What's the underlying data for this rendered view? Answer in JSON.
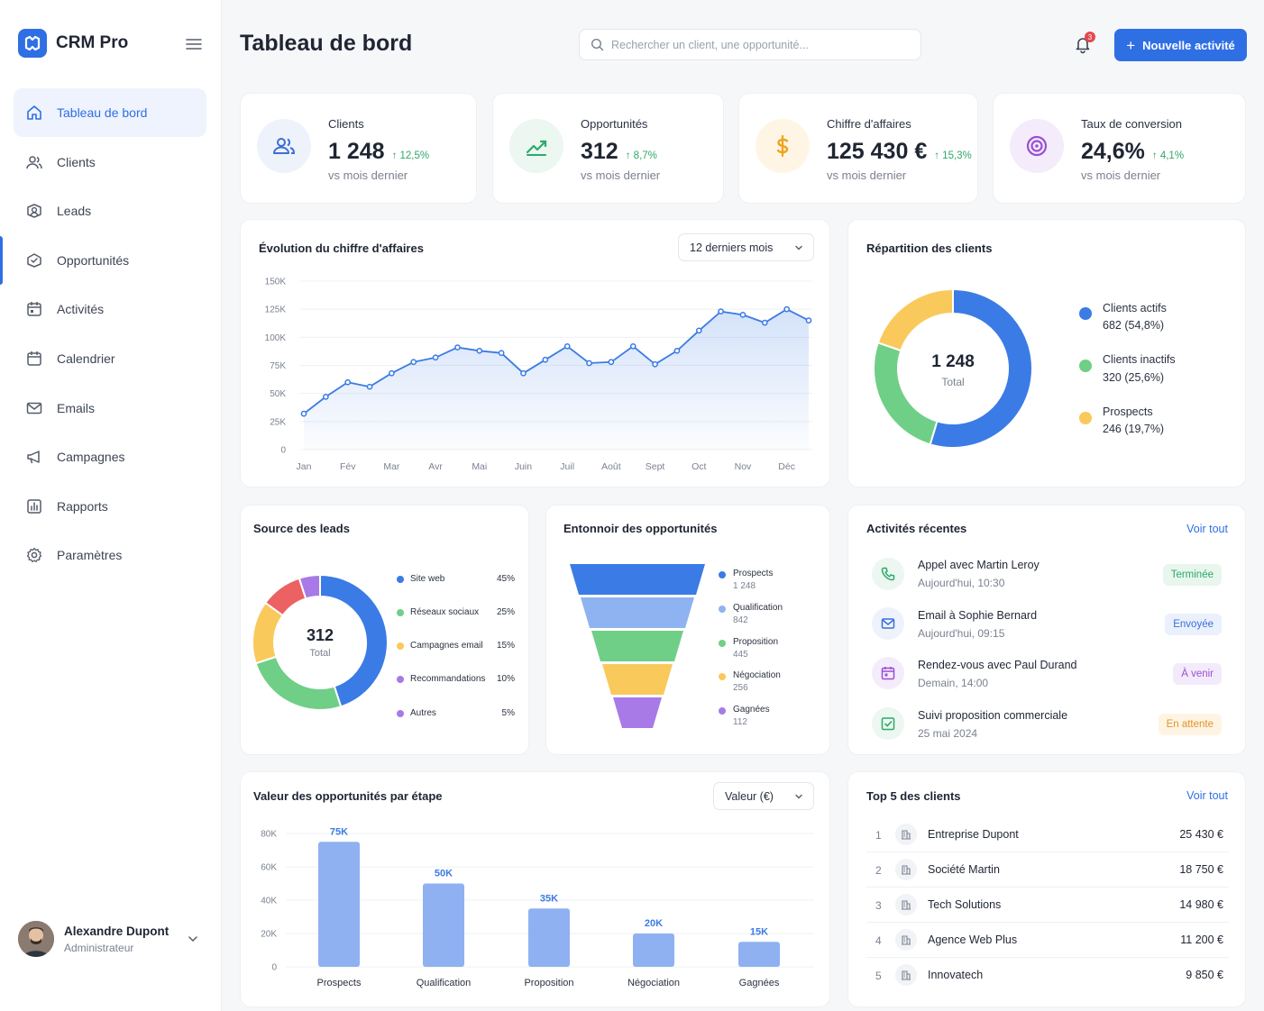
{
  "brand": {
    "name": "CRM Pro"
  },
  "sidebar": {
    "items": [
      {
        "label": "Tableau de bord",
        "icon": "home-icon",
        "active": true
      },
      {
        "label": "Clients",
        "icon": "users-icon"
      },
      {
        "label": "Leads",
        "icon": "leads-icon"
      },
      {
        "label": "Opportunités",
        "icon": "opportunities-icon"
      },
      {
        "label": "Activités",
        "icon": "activities-icon"
      },
      {
        "label": "Calendrier",
        "icon": "calendar-icon"
      },
      {
        "label": "Emails",
        "icon": "mail-icon"
      },
      {
        "label": "Campagnes",
        "icon": "megaphone-icon"
      },
      {
        "label": "Rapports",
        "icon": "report-icon"
      },
      {
        "label": "Paramètres",
        "icon": "gear-icon"
      }
    ]
  },
  "user": {
    "name": "Alexandre Dupont",
    "role": "Administrateur"
  },
  "header": {
    "title": "Tableau de bord",
    "search_placeholder": "Rechercher un client, une opportunité...",
    "notifications_count": "3",
    "new_activity_label": "Nouvelle activité"
  },
  "kpis": [
    {
      "label": "Clients",
      "value": "1 248",
      "delta": "12,5%",
      "sub": "vs mois dernier",
      "icon": "users-icon",
      "color": "#3b6fd6",
      "bg": "#eef2fb"
    },
    {
      "label": "Opportunités",
      "value": "312",
      "delta": "8,7%",
      "sub": "vs mois dernier",
      "icon": "trending-up-icon",
      "color": "#2fa86a",
      "bg": "#ebf7f0"
    },
    {
      "label": "Chiffre d'affaires",
      "value": "125 430 €",
      "delta": "15,3%",
      "sub": "vs mois dernier",
      "icon": "dollar-icon",
      "color": "#f0a31c",
      "bg": "#fff5e4"
    },
    {
      "label": "Taux de conversion",
      "value": "24,6%",
      "delta": "4,1%",
      "sub": "vs mois dernier",
      "icon": "target-icon",
      "color": "#9a4fd3",
      "bg": "#f4ecfb"
    }
  ],
  "revenue_chart": {
    "title": "Évolution du chiffre d'affaires",
    "period": "12 derniers mois"
  },
  "clients_split": {
    "title": "Répartition des clients",
    "total": "1 248",
    "total_label": "Total",
    "items": [
      {
        "label": "Clients actifs",
        "detail": "682 (54,8%)",
        "color": "#3b7be5"
      },
      {
        "label": "Clients inactifs",
        "detail": "320 (25,6%)",
        "color": "#6fcf86"
      },
      {
        "label": "Prospects",
        "detail": "246 (19,7%)",
        "color": "#f9c95c"
      }
    ]
  },
  "lead_sources": {
    "title": "Source des leads",
    "total": "312",
    "total_label": "Total",
    "items": [
      {
        "label": "Site web",
        "pct": "45%",
        "color": "#3b7be5"
      },
      {
        "label": "Réseaux sociaux",
        "pct": "25%",
        "color": "#6fcf86"
      },
      {
        "label": "Campagnes email",
        "pct": "15%",
        "color": "#f9c95c"
      },
      {
        "label": "Recommandations",
        "pct": "10%",
        "color": "#ec6161"
      },
      {
        "label": "Autres",
        "pct": "5%",
        "color": "#a77ae8"
      }
    ]
  },
  "funnel": {
    "title": "Entonnoir des opportunités",
    "stages": [
      {
        "label": "Prospects",
        "value": "1 248",
        "color": "#3b7be5"
      },
      {
        "label": "Qualification",
        "value": "842",
        "color": "#8fb3f0"
      },
      {
        "label": "Proposition",
        "value": "445",
        "color": "#6fcf86"
      },
      {
        "label": "Négociation",
        "value": "256",
        "color": "#f9c95c"
      },
      {
        "label": "Gagnées",
        "value": "112",
        "color": "#a77ae8"
      }
    ]
  },
  "activities": {
    "title": "Activités récentes",
    "see_all": "Voir tout",
    "items": [
      {
        "title": "Appel avec Martin Leroy",
        "time": "Aujourd'hui, 10:30",
        "status": "Terminée",
        "icon": "phone-icon",
        "fg": "#2fa86a",
        "bg": "#ebf7f0",
        "badge_fg": "#2fa86a",
        "badge_bg": "#e8f6ee"
      },
      {
        "title": "Email à Sophie Bernard",
        "time": "Aujourd'hui, 09:15",
        "status": "Envoyée",
        "icon": "mail-icon",
        "fg": "#3b6fd6",
        "bg": "#eef2fb",
        "badge_fg": "#3b6fd6",
        "badge_bg": "#eaf0fc"
      },
      {
        "title": "Rendez-vous avec Paul Durand",
        "time": "Demain, 14:00",
        "status": "À venir",
        "icon": "calendar-icon",
        "fg": "#9a4fd3",
        "bg": "#f4ecfb",
        "badge_fg": "#9a4fd3",
        "badge_bg": "#f3ebfb"
      },
      {
        "title": "Suivi proposition commerciale",
        "time": "25 mai 2024",
        "status": "En attente",
        "icon": "check-square-icon",
        "fg": "#2fa86a",
        "bg": "#ebf7f0",
        "badge_fg": "#e0952a",
        "badge_bg": "#fff4e3"
      }
    ]
  },
  "stage_values": {
    "title": "Valeur des opportunités par étape",
    "select": "Valeur (€)"
  },
  "top_clients": {
    "title": "Top 5 des clients",
    "see_all": "Voir tout",
    "items": [
      {
        "rank": "1",
        "name": "Entreprise Dupont",
        "value": "25 430 €"
      },
      {
        "rank": "2",
        "name": "Société Martin",
        "value": "18 750 €"
      },
      {
        "rank": "3",
        "name": "Tech Solutions",
        "value": "14 980 €"
      },
      {
        "rank": "4",
        "name": "Agence Web Plus",
        "value": "11 200 €"
      },
      {
        "rank": "5",
        "name": "Innovatech",
        "value": "9 850 €"
      }
    ]
  },
  "chart_data": [
    {
      "type": "line",
      "title": "Évolution du chiffre d'affaires",
      "categories": [
        "Jan",
        "Fév",
        "Mar",
        "Avr",
        "Mai",
        "Juin",
        "Juil",
        "Août",
        "Sept",
        "Oct",
        "Nov",
        "Déc"
      ],
      "y_ticks": [
        "0",
        "25K",
        "50K",
        "75K",
        "100K",
        "125K",
        "150K"
      ],
      "ylim": [
        0,
        150000
      ],
      "x": [
        0,
        0.5,
        1,
        1.5,
        2,
        2.5,
        3,
        3.5,
        4,
        4.5,
        5,
        5.5,
        6,
        6.5,
        7,
        7.5,
        8,
        8.5,
        9,
        9.5,
        10,
        10.5,
        11,
        11.5
      ],
      "values": [
        32000,
        47000,
        60000,
        56000,
        68000,
        78000,
        82000,
        91000,
        88000,
        86000,
        68000,
        80000,
        92000,
        77000,
        78000,
        92000,
        76000,
        88000,
        106000,
        123000,
        120000,
        113000,
        125000,
        115000
      ]
    },
    {
      "type": "pie",
      "title": "Répartition des clients",
      "labels": [
        "Clients actifs",
        "Clients inactifs",
        "Prospects"
      ],
      "values": [
        682,
        320,
        246
      ],
      "colors": [
        "#3b7be5",
        "#6fcf86",
        "#f9c95c"
      ]
    },
    {
      "type": "pie",
      "title": "Source des leads",
      "labels": [
        "Site web",
        "Réseaux sociaux",
        "Campagnes email",
        "Recommandations",
        "Autres"
      ],
      "values": [
        45,
        25,
        15,
        10,
        5
      ],
      "colors": [
        "#3b7be5",
        "#6fcf86",
        "#f9c95c",
        "#ec6161",
        "#a77ae8"
      ]
    },
    {
      "type": "bar",
      "title": "Valeur des opportunités par étape",
      "categories": [
        "Prospects",
        "Qualification",
        "Proposition",
        "Négociation",
        "Gagnées"
      ],
      "values": [
        75000,
        50000,
        35000,
        20000,
        15000
      ],
      "value_labels": [
        "75K",
        "50K",
        "35K",
        "20K",
        "15K"
      ],
      "y_ticks": [
        "0",
        "20K",
        "40K",
        "60K",
        "80K"
      ],
      "ylim": [
        0,
        80000
      ]
    }
  ]
}
